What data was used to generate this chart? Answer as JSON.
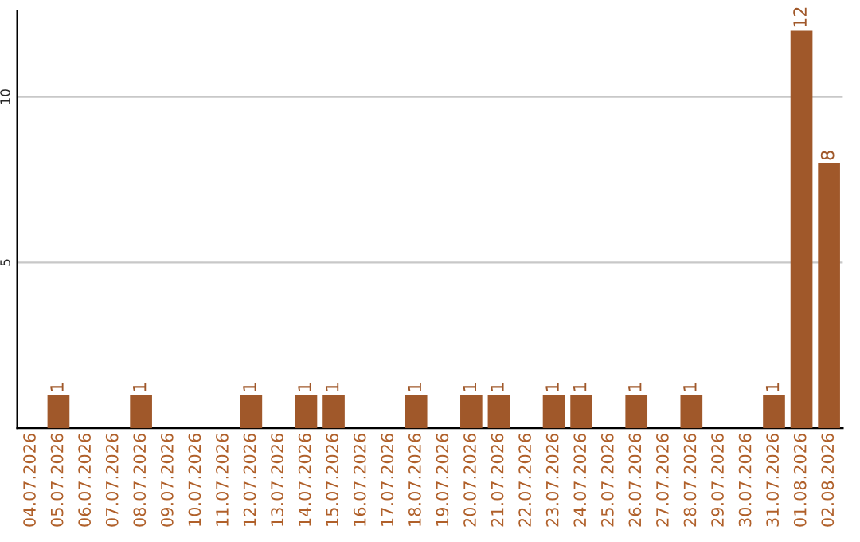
{
  "chart_data": {
    "type": "bar",
    "categories": [
      "04.07.2026",
      "05.07.2026",
      "06.07.2026",
      "07.07.2026",
      "08.07.2026",
      "09.07.2026",
      "10.07.2026",
      "11.07.2026",
      "12.07.2026",
      "13.07.2026",
      "14.07.2026",
      "15.07.2026",
      "16.07.2026",
      "17.07.2026",
      "18.07.2026",
      "19.07.2026",
      "20.07.2026",
      "21.07.2026",
      "22.07.2026",
      "23.07.2026",
      "24.07.2026",
      "25.07.2026",
      "26.07.2026",
      "27.07.2026",
      "28.07.2026",
      "29.07.2026",
      "30.07.2026",
      "31.07.2026",
      "01.08.2026",
      "02.08.2026"
    ],
    "values": [
      0,
      1,
      0,
      0,
      1,
      0,
      0,
      0,
      1,
      0,
      1,
      1,
      0,
      0,
      1,
      0,
      1,
      1,
      0,
      1,
      1,
      0,
      1,
      0,
      1,
      0,
      0,
      1,
      12,
      8
    ],
    "value_labels": [
      null,
      "1",
      null,
      null,
      "1",
      null,
      null,
      null,
      "1",
      null,
      "1",
      "1",
      null,
      null,
      "1",
      null,
      "1",
      "1",
      null,
      "1",
      "1",
      null,
      "1",
      null,
      "1",
      null,
      null,
      "1",
      "12",
      "8"
    ],
    "color": "#a0582a",
    "ylim": [
      0,
      12.6
    ],
    "yticks": [
      5,
      10
    ],
    "grid": "y"
  }
}
